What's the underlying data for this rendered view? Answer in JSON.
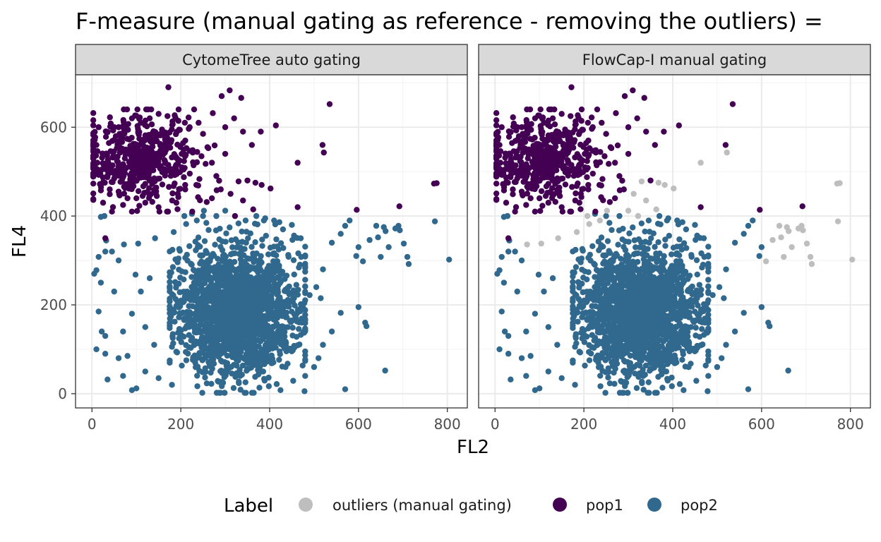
{
  "chart_data": {
    "type": "scatter",
    "title": "F-measure (manual gating as reference - removing the outliers) =",
    "xlabel": "FL2",
    "ylabel": "FL4",
    "xlim": [
      -37,
      845
    ],
    "ylim": [
      -32,
      718
    ],
    "x_ticks": [
      0,
      200,
      400,
      600,
      800
    ],
    "x_tick_labels": [
      "0",
      "200",
      "400",
      "600",
      "800"
    ],
    "y_ticks": [
      0,
      200,
      400,
      600
    ],
    "y_tick_labels": [
      "0",
      "200",
      "400",
      "600"
    ],
    "grid": true,
    "legend": {
      "title": "Label",
      "position": "bottom",
      "items": [
        {
          "label": "outliers (manual gating)",
          "color": "#bebebe"
        },
        {
          "label": "pop1",
          "color": "#440154"
        },
        {
          "label": "pop2",
          "color": "#31688e"
        }
      ]
    },
    "colors": {
      "outliers": "#bebebe",
      "pop1": "#440154",
      "pop2": "#31688e"
    },
    "panels": [
      {
        "strip": "CytomeTree auto gating"
      },
      {
        "strip": "FlowCap-I manual gating"
      }
    ],
    "outlier_points": [
      [
        520,
        560
      ],
      [
        522,
        543
      ],
      [
        463,
        520
      ],
      [
        350,
        482
      ],
      [
        330,
        478
      ],
      [
        368,
        475
      ],
      [
        382,
        470
      ],
      [
        402,
        462
      ],
      [
        312,
        450
      ],
      [
        340,
        435
      ],
      [
        363,
        415
      ],
      [
        322,
        400
      ],
      [
        278,
        400
      ],
      [
        300,
        412
      ],
      [
        252,
        412
      ],
      [
        208,
        400
      ],
      [
        236,
        390
      ],
      [
        212,
        382
      ],
      [
        184,
        364
      ],
      [
        142,
        350
      ],
      [
        104,
        338
      ],
      [
        72,
        336
      ],
      [
        50,
        320
      ],
      [
        58,
        314
      ],
      [
        38,
        330
      ],
      [
        610,
        298
      ],
      [
        625,
        346
      ],
      [
        644,
        352
      ],
      [
        640,
        378
      ],
      [
        657,
        375
      ],
      [
        661,
        366
      ],
      [
        683,
        372
      ],
      [
        690,
        378
      ],
      [
        693,
        368
      ],
      [
        690,
        422
      ],
      [
        710,
        308
      ],
      [
        713,
        292
      ],
      [
        702,
        338
      ],
      [
        770,
        473
      ],
      [
        776,
        474
      ],
      [
        772,
        388
      ],
      [
        804,
        302
      ],
      [
        650,
        308
      ],
      [
        668,
        330
      ]
    ],
    "pop1_cluster": {
      "center": [
        110,
        530
      ],
      "spread": [
        62,
        48
      ],
      "count": 520
    },
    "pop1_points": [
      [
        172,
        690
      ],
      [
        310,
        683
      ],
      [
        535,
        652
      ],
      [
        292,
        670
      ],
      [
        336,
        666
      ],
      [
        414,
        604
      ],
      [
        519,
        560
      ],
      [
        522,
        543
      ],
      [
        463,
        520
      ],
      [
        463,
        420
      ],
      [
        596,
        414
      ],
      [
        692,
        422
      ],
      [
        770,
        473
      ],
      [
        776,
        474
      ],
      [
        380,
        590
      ],
      [
        360,
        560
      ],
      [
        350,
        480
      ],
      [
        330,
        478
      ],
      [
        368,
        475
      ],
      [
        382,
        470
      ],
      [
        402,
        462
      ],
      [
        312,
        450
      ],
      [
        340,
        435
      ],
      [
        363,
        415
      ],
      [
        322,
        400
      ],
      [
        290,
        460
      ],
      [
        280,
        490
      ],
      [
        270,
        520
      ],
      [
        260,
        555
      ],
      [
        250,
        585
      ],
      [
        240,
        610
      ],
      [
        230,
        640
      ],
      [
        220,
        600
      ],
      [
        210,
        570
      ],
      [
        300,
        600
      ],
      [
        320,
        620
      ],
      [
        340,
        590
      ],
      [
        300,
        540
      ],
      [
        270,
        440
      ],
      [
        235,
        470
      ],
      [
        210,
        460
      ],
      [
        190,
        430
      ],
      [
        150,
        420
      ],
      [
        120,
        430
      ],
      [
        100,
        440
      ],
      [
        80,
        440
      ],
      [
        60,
        455
      ],
      [
        40,
        460
      ],
      [
        20,
        470
      ],
      [
        25,
        430
      ],
      [
        45,
        410
      ],
      [
        70,
        425
      ],
      [
        30,
        350
      ],
      [
        130,
        620
      ],
      [
        150,
        630
      ],
      [
        170,
        625
      ],
      [
        195,
        640
      ],
      [
        110,
        610
      ],
      [
        90,
        620
      ],
      [
        60,
        600
      ],
      [
        15,
        600
      ],
      [
        10,
        560
      ],
      [
        12,
        520
      ],
      [
        8,
        500
      ]
    ],
    "pop2_cluster": {
      "center": [
        330,
        190
      ],
      "spread": [
        70,
        72
      ],
      "count": 1900
    },
    "pop2_points": [
      [
        5,
        270
      ],
      [
        10,
        278
      ],
      [
        15,
        308
      ],
      [
        20,
        398
      ],
      [
        28,
        400
      ],
      [
        32,
        345
      ],
      [
        30,
        320
      ],
      [
        45,
        320
      ],
      [
        60,
        300
      ],
      [
        20,
        250
      ],
      [
        15,
        185
      ],
      [
        22,
        140
      ],
      [
        30,
        130
      ],
      [
        10,
        100
      ],
      [
        30,
        90
      ],
      [
        35,
        32
      ],
      [
        70,
        40
      ],
      [
        90,
        8
      ],
      [
        100,
        12
      ],
      [
        60,
        80
      ],
      [
        80,
        85
      ],
      [
        120,
        50
      ],
      [
        150,
        35
      ],
      [
        180,
        20
      ],
      [
        225,
        405
      ],
      [
        250,
        400
      ],
      [
        280,
        400
      ],
      [
        300,
        412
      ],
      [
        252,
        412
      ],
      [
        208,
        400
      ],
      [
        236,
        390
      ],
      [
        212,
        382
      ],
      [
        184,
        364
      ],
      [
        142,
        350
      ],
      [
        104,
        338
      ],
      [
        72,
        336
      ],
      [
        98,
        268
      ],
      [
        130,
        260
      ],
      [
        110,
        230
      ],
      [
        50,
        230
      ],
      [
        90,
        180
      ],
      [
        120,
        150
      ],
      [
        70,
        140
      ],
      [
        140,
        110
      ],
      [
        610,
        298
      ],
      [
        625,
        346
      ],
      [
        644,
        352
      ],
      [
        640,
        378
      ],
      [
        657,
        375
      ],
      [
        661,
        366
      ],
      [
        683,
        372
      ],
      [
        690,
        378
      ],
      [
        693,
        368
      ],
      [
        710,
        308
      ],
      [
        713,
        292
      ],
      [
        702,
        338
      ],
      [
        772,
        388
      ],
      [
        804,
        302
      ],
      [
        650,
        308
      ],
      [
        668,
        330
      ],
      [
        570,
        378
      ],
      [
        600,
        330
      ],
      [
        595,
        310
      ],
      [
        580,
        390
      ],
      [
        560,
        360
      ],
      [
        540,
        340
      ],
      [
        520,
        280
      ],
      [
        505,
        240
      ],
      [
        515,
        215
      ],
      [
        490,
        222
      ],
      [
        600,
        195
      ],
      [
        615,
        160
      ],
      [
        618,
        152
      ],
      [
        560,
        182
      ],
      [
        540,
        140
      ],
      [
        520,
        110
      ],
      [
        510,
        80
      ],
      [
        500,
        60
      ],
      [
        480,
        40
      ],
      [
        570,
        10
      ],
      [
        660,
        52
      ],
      [
        470,
        350
      ],
      [
        450,
        380
      ],
      [
        430,
        370
      ],
      [
        410,
        390
      ],
      [
        390,
        395
      ],
      [
        370,
        400
      ]
    ]
  }
}
